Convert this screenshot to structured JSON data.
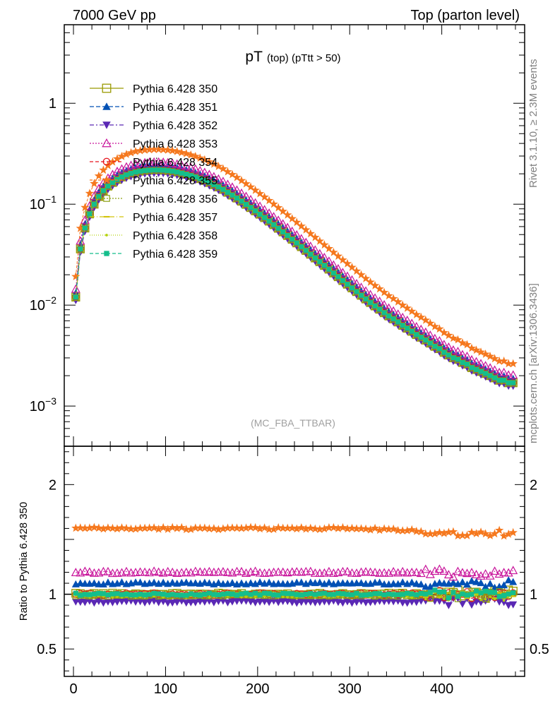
{
  "header": {
    "left": "7000 GeV pp",
    "right": "Top (parton level)"
  },
  "side": {
    "top": "Rivet 3.1.10, ≥ 2.3M events",
    "bottom": "mcplots.cern.ch [arXiv:1306.3436]"
  },
  "chart_data": [
    {
      "type": "line",
      "title_main": "pT",
      "title_sub": "(top) (pTtt > 50)",
      "analysis_label": "(MC_FBA_TTBAR)",
      "ylabel": "",
      "xlabel": "",
      "yscale": "log",
      "ylim": [
        0.0004,
        6
      ],
      "xlim": [
        -10,
        490
      ],
      "yticks": [
        {
          "value": 0.001,
          "base": "10",
          "exp": "−3"
        },
        {
          "value": 0.01,
          "base": "10",
          "exp": "−2"
        },
        {
          "value": 0.1,
          "base": "10",
          "exp": "−1"
        },
        {
          "value": 1,
          "base": "1",
          "exp": ""
        }
      ],
      "x": [
        2.5,
        7.5,
        12.5,
        17.5,
        22.5,
        27.5,
        32.5,
        37.5,
        42.5,
        47.5,
        52.5,
        57.5,
        62.5,
        67.5,
        72.5,
        77.5,
        82.5,
        87.5,
        92.5,
        97.5,
        102.5,
        107.5,
        112.5,
        117.5,
        122.5,
        127.5,
        132.5,
        137.5,
        142.5,
        147.5,
        152.5,
        157.5,
        162.5,
        167.5,
        172.5,
        177.5,
        182.5,
        187.5,
        192.5,
        197.5,
        202.5,
        207.5,
        212.5,
        217.5,
        222.5,
        227.5,
        232.5,
        237.5,
        242.5,
        247.5,
        252.5,
        257.5,
        262.5,
        267.5,
        272.5,
        277.5,
        282.5,
        287.5,
        292.5,
        297.5,
        302.5,
        307.5,
        312.5,
        317.5,
        322.5,
        327.5,
        332.5,
        337.5,
        342.5,
        347.5,
        352.5,
        357.5,
        362.5,
        367.5,
        372.5,
        377.5,
        382.5,
        387.5,
        392.5,
        397.5,
        402.5,
        407.5,
        412.5,
        417.5,
        422.5,
        427.5,
        432.5,
        437.5,
        442.5,
        447.5,
        452.5,
        457.5,
        462.5,
        467.5,
        472.5,
        477.5
      ],
      "reference_values": [
        0.012,
        0.036,
        0.058,
        0.08,
        0.1,
        0.119,
        0.136,
        0.151,
        0.164,
        0.176,
        0.186,
        0.195,
        0.202,
        0.208,
        0.212,
        0.215,
        0.217,
        0.218,
        0.218,
        0.217,
        0.215,
        0.212,
        0.208,
        0.203,
        0.198,
        0.192,
        0.186,
        0.179,
        0.172,
        0.164,
        0.156,
        0.148,
        0.14,
        0.131,
        0.123,
        0.115,
        0.107,
        0.0995,
        0.0925,
        0.0858,
        0.0795,
        0.0735,
        0.0679,
        0.0626,
        0.0577,
        0.0531,
        0.0489,
        0.0449,
        0.0413,
        0.0379,
        0.0348,
        0.0319,
        0.0293,
        0.0269,
        0.0247,
        0.0227,
        0.0208,
        0.0191,
        0.0175,
        0.0161,
        0.0148,
        0.0136,
        0.0125,
        0.0115,
        0.0106,
        0.0098,
        0.0091,
        0.0084,
        0.0078,
        0.0073,
        0.0068,
        0.0063,
        0.0059,
        0.0055,
        0.0051,
        0.0048,
        0.0045,
        0.0042,
        0.0039,
        0.0037,
        0.0034,
        0.0032,
        0.003,
        0.0029,
        0.0027,
        0.0026,
        0.0024,
        0.0023,
        0.0022,
        0.0021,
        0.002,
        0.0019,
        0.0018,
        0.0018,
        0.0017,
        0.0017
      ],
      "series": [
        {
          "name": "Pythia 6.428 350",
          "color": "#999900",
          "marker": "open-square",
          "dash": "solid",
          "scale": 1.0
        },
        {
          "name": "Pythia 6.428 351",
          "color": "#0050b4",
          "marker": "filled-triangle-up",
          "dash": "6,3",
          "scale": 1.1
        },
        {
          "name": "Pythia 6.428 352",
          "color": "#5a28b4",
          "marker": "filled-triangle-down",
          "dash": "6,3,2,3",
          "scale": 0.93
        },
        {
          "name": "Pythia 6.428 353",
          "color": "#c8149b",
          "marker": "open-triangle-up",
          "dash": "2,2",
          "scale": 1.2
        },
        {
          "name": "Pythia 6.428 354",
          "color": "#e6141e",
          "marker": "open-circle",
          "dash": "5,3",
          "scale": 1.0
        },
        {
          "name": "Pythia 6.428 355",
          "color": "#f5781e",
          "marker": "filled-star",
          "dash": "4,2",
          "scale": 1.6
        },
        {
          "name": "Pythia 6.428 356",
          "color": "#8ca014",
          "marker": "open-square-small",
          "dash": "2,2",
          "scale": 0.99
        },
        {
          "name": "Pythia 6.428 357",
          "color": "#d2c30a",
          "marker": "dash-dot",
          "dash": "7,3,1,3",
          "scale": 1.0
        },
        {
          "name": "Pythia 6.428 358",
          "color": "#b4d20a",
          "marker": "dot",
          "dash": "1,2",
          "scale": 0.98
        },
        {
          "name": "Pythia 6.428 359",
          "color": "#14be8c",
          "marker": "filled-square-small",
          "dash": "5,3",
          "scale": 1.0
        }
      ]
    },
    {
      "type": "line",
      "ylabel": "Ratio to Pythia 6.428 350",
      "xlabel": "",
      "ylim": [
        0.25,
        2.35
      ],
      "xlim": [
        -10,
        490
      ],
      "yticks": [
        0.5,
        1,
        2
      ],
      "ytick_labels": [
        "0.5",
        "1",
        "2"
      ],
      "xticks": [
        0,
        100,
        200,
        300,
        400
      ],
      "xtick_labels": [
        "0",
        "100",
        "200",
        "300",
        "400"
      ],
      "reference_line": 1,
      "ratio_levels": {
        "Pythia 6.428 350": 1.0,
        "Pythia 6.428 351": 1.1,
        "Pythia 6.428 352": 0.93,
        "Pythia 6.428 353": 1.2,
        "Pythia 6.428 354": 1.0,
        "Pythia 6.428 355": 1.6,
        "Pythia 6.428 356": 0.99,
        "Pythia 6.428 357": 1.0,
        "Pythia 6.428 358": 0.98,
        "Pythia 6.428 359": 1.0
      }
    }
  ]
}
